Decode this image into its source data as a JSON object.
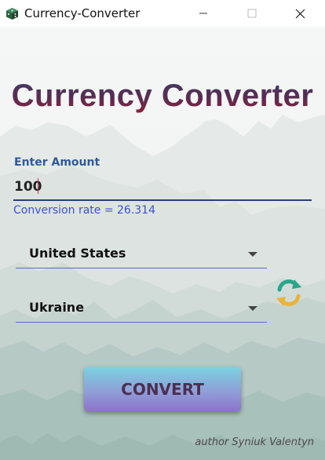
{
  "window": {
    "title": "Currency-Converter"
  },
  "main": {
    "heading": "Currency Converter",
    "amount_label": "Enter Amount",
    "amount_value": "100",
    "conversion_rate": "Conversion rate = 26.314",
    "from_currency": "United States",
    "to_currency": "Ukraine",
    "convert_label": "CONVERT",
    "author": "author Syniuk Valentyn"
  },
  "icons": {
    "app": "dice-icon",
    "swap": "refresh-swap-icon"
  },
  "colors": {
    "heading_top": "#3d3a66",
    "heading_bottom": "#8a2038",
    "label_blue": "#2f5a9a",
    "rate_blue": "#3f4fcf",
    "button_top": "#7ad3e0",
    "button_bottom": "#8e72c9"
  }
}
